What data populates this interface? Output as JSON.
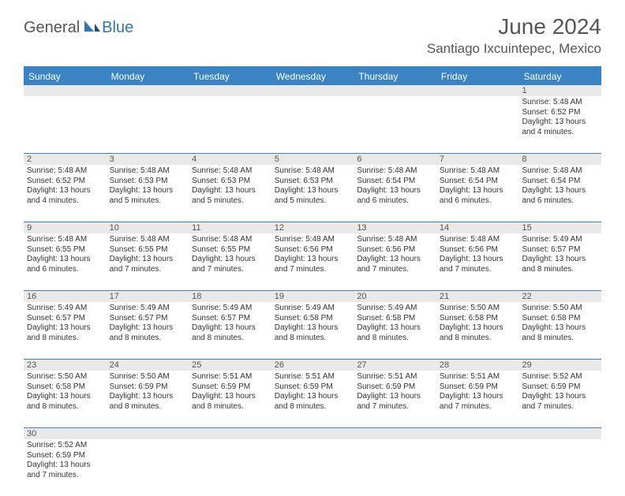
{
  "logo": {
    "text_dark": "General",
    "text_blue": "Blue"
  },
  "title": "June 2024",
  "location": "Santiago Ixcuintepec, Mexico",
  "header_color": "#3b84c4",
  "daynum_bg": "#e9e9e9",
  "border_color": "#3b84c4",
  "day_names": [
    "Sunday",
    "Monday",
    "Tuesday",
    "Wednesday",
    "Thursday",
    "Friday",
    "Saturday"
  ],
  "weeks": [
    {
      "nums": [
        "",
        "",
        "",
        "",
        "",
        "",
        "1"
      ],
      "cells": [
        null,
        null,
        null,
        null,
        null,
        null,
        {
          "sunrise": "Sunrise: 5:48 AM",
          "sunset": "Sunset: 6:52 PM",
          "day1": "Daylight: 13 hours",
          "day2": "and 4 minutes."
        }
      ]
    },
    {
      "nums": [
        "2",
        "3",
        "4",
        "5",
        "6",
        "7",
        "8"
      ],
      "cells": [
        {
          "sunrise": "Sunrise: 5:48 AM",
          "sunset": "Sunset: 6:52 PM",
          "day1": "Daylight: 13 hours",
          "day2": "and 4 minutes."
        },
        {
          "sunrise": "Sunrise: 5:48 AM",
          "sunset": "Sunset: 6:53 PM",
          "day1": "Daylight: 13 hours",
          "day2": "and 5 minutes."
        },
        {
          "sunrise": "Sunrise: 5:48 AM",
          "sunset": "Sunset: 6:53 PM",
          "day1": "Daylight: 13 hours",
          "day2": "and 5 minutes."
        },
        {
          "sunrise": "Sunrise: 5:48 AM",
          "sunset": "Sunset: 6:53 PM",
          "day1": "Daylight: 13 hours",
          "day2": "and 5 minutes."
        },
        {
          "sunrise": "Sunrise: 5:48 AM",
          "sunset": "Sunset: 6:54 PM",
          "day1": "Daylight: 13 hours",
          "day2": "and 6 minutes."
        },
        {
          "sunrise": "Sunrise: 5:48 AM",
          "sunset": "Sunset: 6:54 PM",
          "day1": "Daylight: 13 hours",
          "day2": "and 6 minutes."
        },
        {
          "sunrise": "Sunrise: 5:48 AM",
          "sunset": "Sunset: 6:54 PM",
          "day1": "Daylight: 13 hours",
          "day2": "and 6 minutes."
        }
      ]
    },
    {
      "nums": [
        "9",
        "10",
        "11",
        "12",
        "13",
        "14",
        "15"
      ],
      "cells": [
        {
          "sunrise": "Sunrise: 5:48 AM",
          "sunset": "Sunset: 6:55 PM",
          "day1": "Daylight: 13 hours",
          "day2": "and 6 minutes."
        },
        {
          "sunrise": "Sunrise: 5:48 AM",
          "sunset": "Sunset: 6:55 PM",
          "day1": "Daylight: 13 hours",
          "day2": "and 7 minutes."
        },
        {
          "sunrise": "Sunrise: 5:48 AM",
          "sunset": "Sunset: 6:55 PM",
          "day1": "Daylight: 13 hours",
          "day2": "and 7 minutes."
        },
        {
          "sunrise": "Sunrise: 5:48 AM",
          "sunset": "Sunset: 6:56 PM",
          "day1": "Daylight: 13 hours",
          "day2": "and 7 minutes."
        },
        {
          "sunrise": "Sunrise: 5:48 AM",
          "sunset": "Sunset: 6:56 PM",
          "day1": "Daylight: 13 hours",
          "day2": "and 7 minutes."
        },
        {
          "sunrise": "Sunrise: 5:48 AM",
          "sunset": "Sunset: 6:56 PM",
          "day1": "Daylight: 13 hours",
          "day2": "and 7 minutes."
        },
        {
          "sunrise": "Sunrise: 5:49 AM",
          "sunset": "Sunset: 6:57 PM",
          "day1": "Daylight: 13 hours",
          "day2": "and 8 minutes."
        }
      ]
    },
    {
      "nums": [
        "16",
        "17",
        "18",
        "19",
        "20",
        "21",
        "22"
      ],
      "cells": [
        {
          "sunrise": "Sunrise: 5:49 AM",
          "sunset": "Sunset: 6:57 PM",
          "day1": "Daylight: 13 hours",
          "day2": "and 8 minutes."
        },
        {
          "sunrise": "Sunrise: 5:49 AM",
          "sunset": "Sunset: 6:57 PM",
          "day1": "Daylight: 13 hours",
          "day2": "and 8 minutes."
        },
        {
          "sunrise": "Sunrise: 5:49 AM",
          "sunset": "Sunset: 6:57 PM",
          "day1": "Daylight: 13 hours",
          "day2": "and 8 minutes."
        },
        {
          "sunrise": "Sunrise: 5:49 AM",
          "sunset": "Sunset: 6:58 PM",
          "day1": "Daylight: 13 hours",
          "day2": "and 8 minutes."
        },
        {
          "sunrise": "Sunrise: 5:49 AM",
          "sunset": "Sunset: 6:58 PM",
          "day1": "Daylight: 13 hours",
          "day2": "and 8 minutes."
        },
        {
          "sunrise": "Sunrise: 5:50 AM",
          "sunset": "Sunset: 6:58 PM",
          "day1": "Daylight: 13 hours",
          "day2": "and 8 minutes."
        },
        {
          "sunrise": "Sunrise: 5:50 AM",
          "sunset": "Sunset: 6:58 PM",
          "day1": "Daylight: 13 hours",
          "day2": "and 8 minutes."
        }
      ]
    },
    {
      "nums": [
        "23",
        "24",
        "25",
        "26",
        "27",
        "28",
        "29"
      ],
      "cells": [
        {
          "sunrise": "Sunrise: 5:50 AM",
          "sunset": "Sunset: 6:58 PM",
          "day1": "Daylight: 13 hours",
          "day2": "and 8 minutes."
        },
        {
          "sunrise": "Sunrise: 5:50 AM",
          "sunset": "Sunset: 6:59 PM",
          "day1": "Daylight: 13 hours",
          "day2": "and 8 minutes."
        },
        {
          "sunrise": "Sunrise: 5:51 AM",
          "sunset": "Sunset: 6:59 PM",
          "day1": "Daylight: 13 hours",
          "day2": "and 8 minutes."
        },
        {
          "sunrise": "Sunrise: 5:51 AM",
          "sunset": "Sunset: 6:59 PM",
          "day1": "Daylight: 13 hours",
          "day2": "and 8 minutes."
        },
        {
          "sunrise": "Sunrise: 5:51 AM",
          "sunset": "Sunset: 6:59 PM",
          "day1": "Daylight: 13 hours",
          "day2": "and 7 minutes."
        },
        {
          "sunrise": "Sunrise: 5:51 AM",
          "sunset": "Sunset: 6:59 PM",
          "day1": "Daylight: 13 hours",
          "day2": "and 7 minutes."
        },
        {
          "sunrise": "Sunrise: 5:52 AM",
          "sunset": "Sunset: 6:59 PM",
          "day1": "Daylight: 13 hours",
          "day2": "and 7 minutes."
        }
      ]
    },
    {
      "nums": [
        "30",
        "",
        "",
        "",
        "",
        "",
        ""
      ],
      "cells": [
        {
          "sunrise": "Sunrise: 5:52 AM",
          "sunset": "Sunset: 6:59 PM",
          "day1": "Daylight: 13 hours",
          "day2": "and 7 minutes."
        },
        null,
        null,
        null,
        null,
        null,
        null
      ]
    }
  ]
}
